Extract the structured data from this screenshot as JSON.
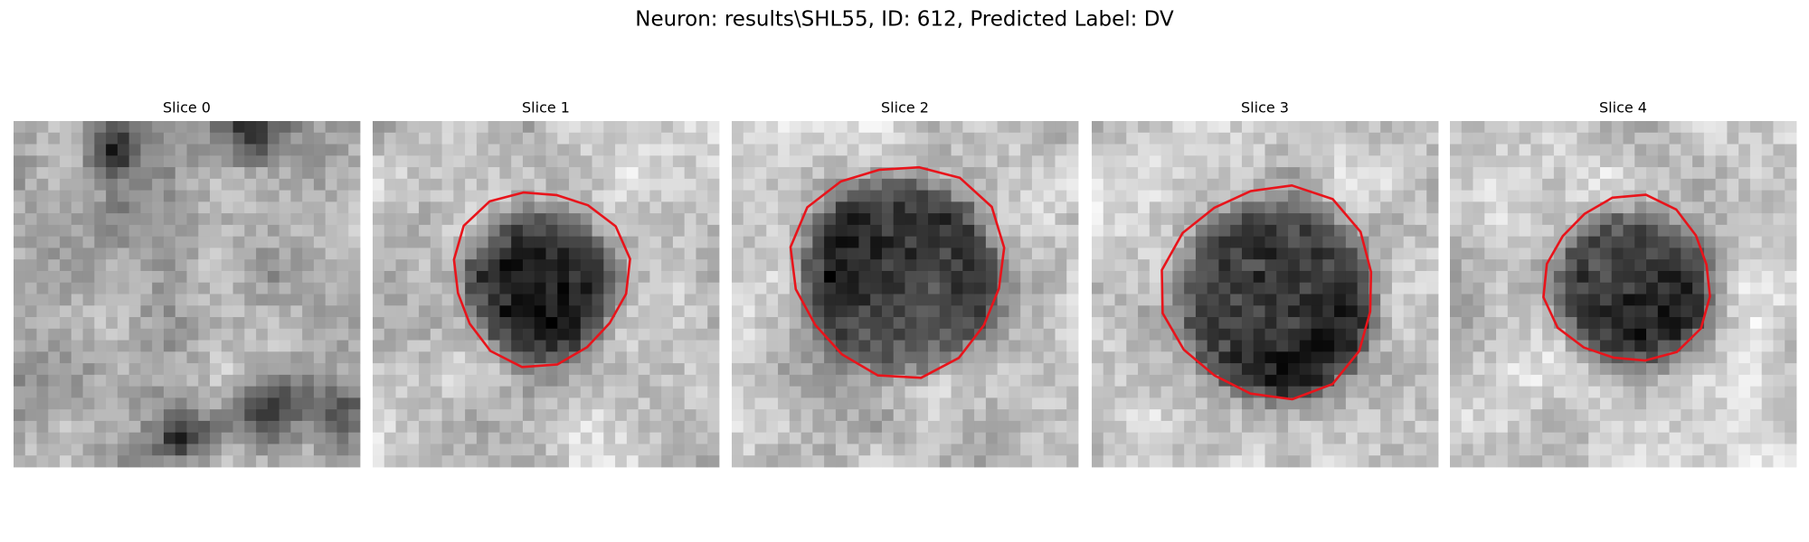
{
  "title": "Neuron: results\\SHL55, ID: 612, Predicted Label: DV",
  "panels": [
    {
      "title": "Slice 0"
    },
    {
      "title": "Slice 1"
    },
    {
      "title": "Slice 2"
    },
    {
      "title": "Slice 3"
    },
    {
      "title": "Slice 4"
    }
  ]
}
